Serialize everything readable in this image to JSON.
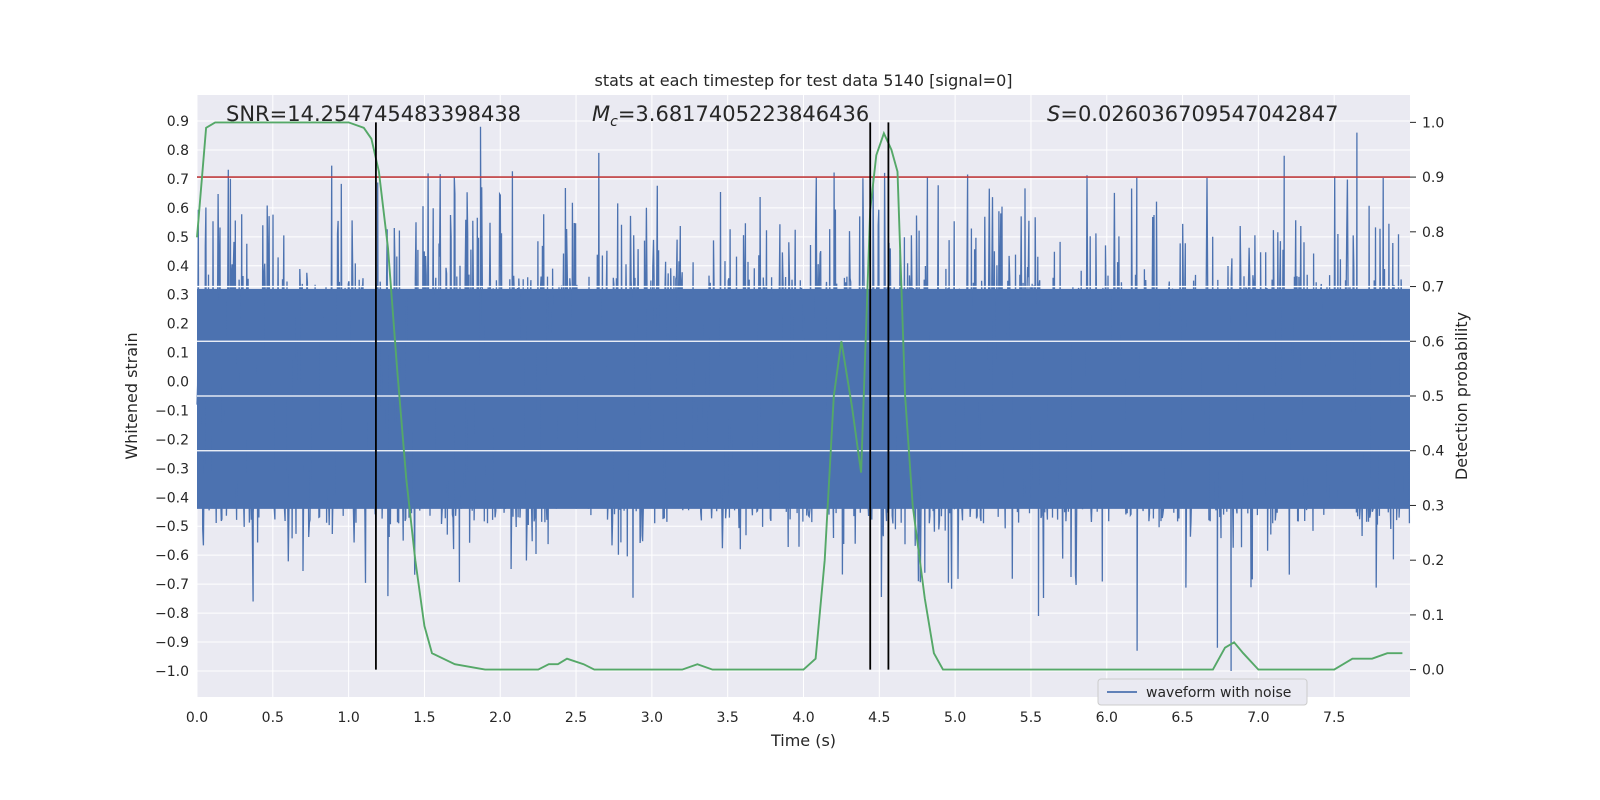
{
  "chart_data": {
    "type": "line",
    "title": "stats at each timestep for test data 5140 [signal=0]",
    "xlabel": "Time (s)",
    "ylabel_left": "Whitened strain",
    "ylabel_right": "Detection probability",
    "xlim": [
      0,
      8
    ],
    "ylim_left": [
      -1.09,
      0.99
    ],
    "ylim_right": [
      -0.05,
      1.05
    ],
    "x_ticks": [
      0.0,
      0.5,
      1.0,
      1.5,
      2.0,
      2.5,
      3.0,
      3.5,
      4.0,
      4.5,
      5.0,
      5.5,
      6.0,
      6.5,
      7.0,
      7.5
    ],
    "y_ticks_left": [
      0.9,
      0.8,
      0.7,
      0.6,
      0.5,
      0.4,
      0.3,
      0.2,
      0.1,
      0.0,
      -0.1,
      -0.2,
      -0.3,
      -0.4,
      -0.5,
      -0.6,
      -0.7,
      -0.8,
      -0.9,
      -1.0
    ],
    "y_ticks_right": [
      1.0,
      0.9,
      0.8,
      0.7,
      0.6,
      0.5,
      0.4,
      0.3,
      0.2,
      0.1,
      0.0
    ],
    "grid": true,
    "legend_position": "bottom-right",
    "annotations": {
      "snr": "SNR=14.254745483398438",
      "mc_symbol": "M",
      "mc_sub": "c",
      "mc_value": "=3.6817405223846436",
      "s_symbol": "S",
      "s_value": "=0.026036709547042847"
    },
    "threshold": {
      "axis": "right",
      "y": 0.9,
      "color": "#c03d3e"
    },
    "vertical_lines": [
      1.18,
      4.44,
      4.56
    ],
    "series": [
      {
        "name": "waveform with noise",
        "axis": "left",
        "color": "#4c72b0",
        "kind": "noise",
        "dense_band": [
          -0.44,
          0.32
        ],
        "max_peak": 0.88,
        "min_peak": -1.0,
        "peaks": [
          [
            0.37,
            -0.76
          ],
          [
            1.87,
            0.88
          ],
          [
            6.82,
            -1.0
          ],
          [
            6.73,
            -0.92
          ],
          [
            7.65,
            0.86
          ],
          [
            2.65,
            0.79
          ],
          [
            5.55,
            -0.81
          ],
          [
            6.2,
            -0.93
          ],
          [
            7.17,
            0.78
          ],
          [
            0.22,
            0.7
          ]
        ]
      },
      {
        "name": "",
        "axis": "right",
        "color": "#55a868",
        "kind": "line",
        "x": [
          0.0,
          0.06,
          0.12,
          0.2,
          0.4,
          0.6,
          0.8,
          1.0,
          1.1,
          1.15,
          1.2,
          1.26,
          1.32,
          1.38,
          1.44,
          1.5,
          1.55,
          1.7,
          1.9,
          2.0,
          2.1,
          2.25,
          2.32,
          2.38,
          2.44,
          2.55,
          2.62,
          2.7,
          3.0,
          3.2,
          3.3,
          3.4,
          3.6,
          3.8,
          4.0,
          4.08,
          4.14,
          4.2,
          4.25,
          4.32,
          4.38,
          4.44,
          4.48,
          4.53,
          4.58,
          4.62,
          4.67,
          4.72,
          4.8,
          4.86,
          4.92,
          5.0,
          5.2,
          5.5,
          6.0,
          6.12,
          6.2,
          6.3,
          6.5,
          6.7,
          6.78,
          6.84,
          6.9,
          7.0,
          7.1,
          7.3,
          7.5,
          7.62,
          7.68,
          7.75,
          7.85,
          7.95
        ],
        "y": [
          0.79,
          0.99,
          1.0,
          1.0,
          1.0,
          1.0,
          1.0,
          1.0,
          0.99,
          0.97,
          0.91,
          0.77,
          0.55,
          0.35,
          0.2,
          0.08,
          0.03,
          0.01,
          0.0,
          0.0,
          0.0,
          0.0,
          0.01,
          0.01,
          0.02,
          0.01,
          0.0,
          0.0,
          0.0,
          0.0,
          0.01,
          0.0,
          0.0,
          0.0,
          0.0,
          0.02,
          0.2,
          0.5,
          0.6,
          0.48,
          0.36,
          0.84,
          0.94,
          0.98,
          0.95,
          0.91,
          0.5,
          0.3,
          0.13,
          0.03,
          0.0,
          0.0,
          0.0,
          0.0,
          0.0,
          0.0,
          0.0,
          0.0,
          0.0,
          0.0,
          0.04,
          0.05,
          0.03,
          0.0,
          0.0,
          0.0,
          0.0,
          0.02,
          0.02,
          0.02,
          0.03,
          0.03
        ]
      }
    ]
  }
}
